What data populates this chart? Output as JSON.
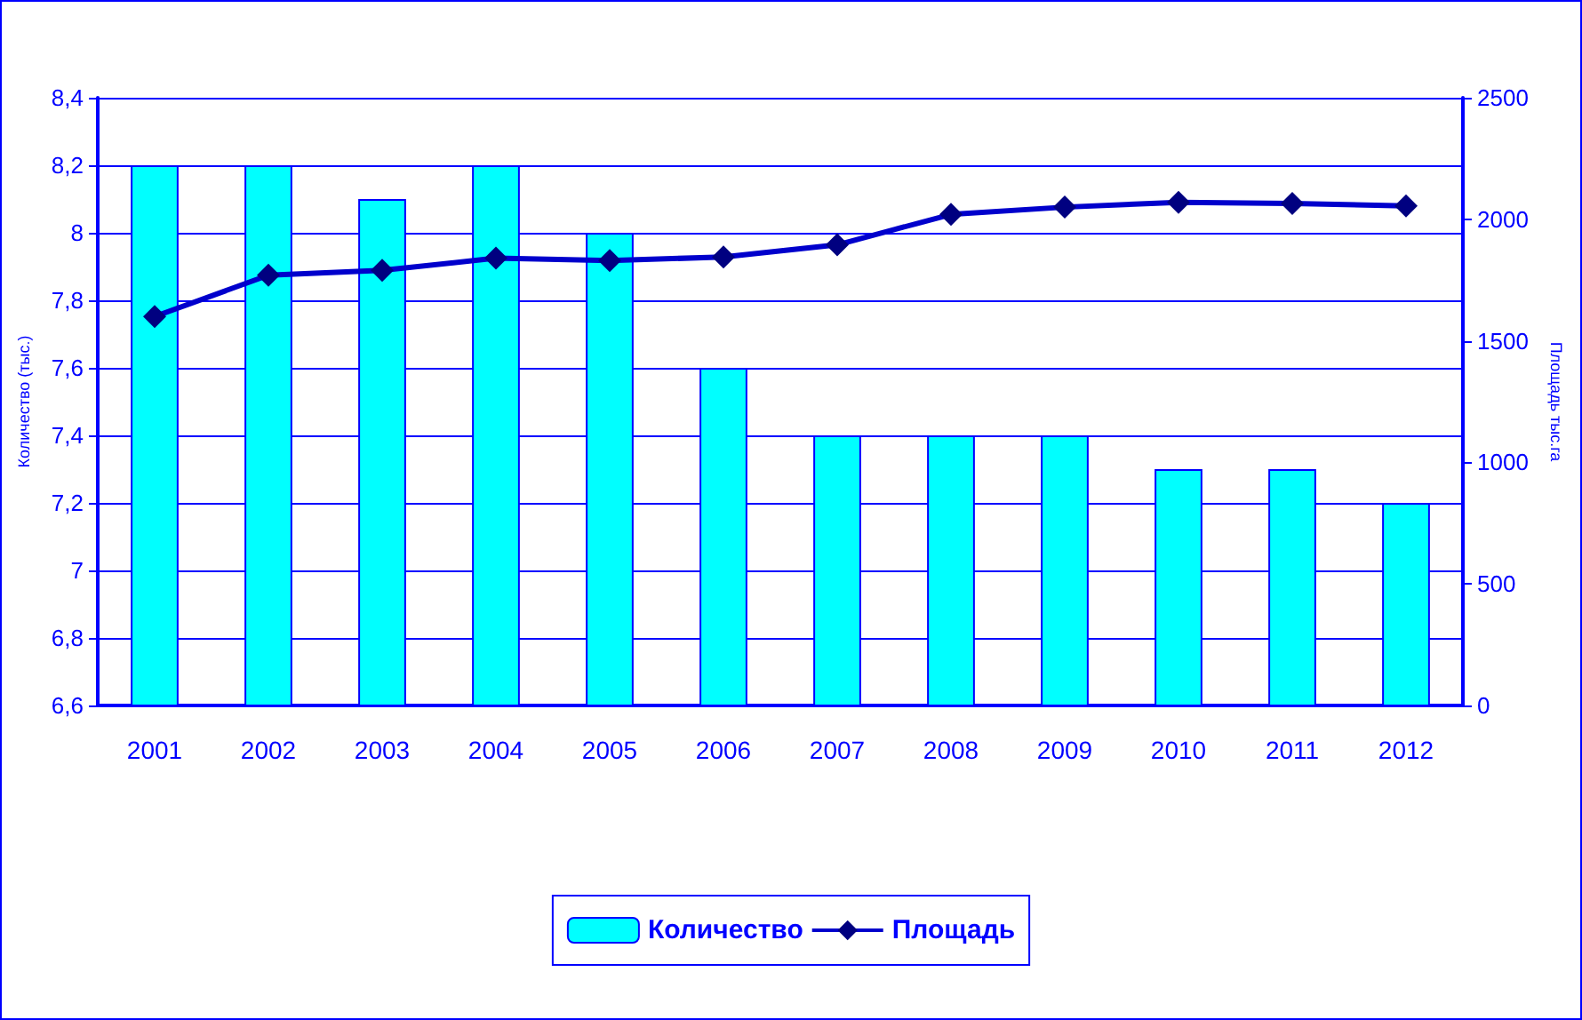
{
  "chart_data": {
    "type": "bar",
    "ylabel": "Количество (тыс.)",
    "y2label": "Площадь тыс.га",
    "categories": [
      "2001",
      "2002",
      "2003",
      "2004",
      "2005",
      "2006",
      "2007",
      "2008",
      "2009",
      "2010",
      "2011",
      "2012"
    ],
    "series": [
      {
        "name": "Количество",
        "color": "#00ffff",
        "values": [
          8.2,
          8.2,
          8.1,
          8.2,
          8.0,
          7.6,
          7.4,
          7.4,
          7.4,
          7.3,
          7.3,
          7.2
        ]
      },
      {
        "name": "Площадь",
        "type": "line",
        "axis": "y2",
        "color": "#0000cc",
        "marker": "diamond",
        "values": [
          1600,
          1770,
          1790,
          1840,
          1830,
          1845,
          1895,
          2020,
          2050,
          2070,
          2065,
          2055
        ]
      }
    ],
    "ylim": [
      6.6,
      8.4
    ],
    "yticks": [
      {
        "value": 6.6,
        "label": "6,6"
      },
      {
        "value": 6.8,
        "label": "6,8"
      },
      {
        "value": 7,
        "label": "7"
      },
      {
        "value": 7.2,
        "label": "7,2"
      },
      {
        "value": 7.4,
        "label": "7,4"
      },
      {
        "value": 7.6,
        "label": "7,6"
      },
      {
        "value": 7.8,
        "label": "7,8"
      },
      {
        "value": 8,
        "label": "8"
      },
      {
        "value": 8.2,
        "label": "8,2"
      },
      {
        "value": 8.4,
        "label": "8,4"
      }
    ],
    "y2lim": [
      0,
      2500
    ],
    "y2ticks": [
      0,
      500,
      1000,
      1500,
      2000,
      2500
    ],
    "grid": "y",
    "legend": "bottom"
  }
}
